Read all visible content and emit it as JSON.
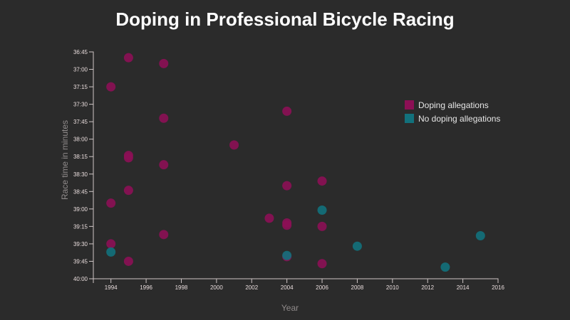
{
  "chart_data": {
    "type": "scatter",
    "title": "Doping in Professional Bicycle Racing",
    "xlabel": "Year",
    "ylabel": "Race time in minutes",
    "xlim": [
      1993,
      2016
    ],
    "ylim": [
      "36:45",
      "40:00"
    ],
    "y_inverted": true,
    "x_ticks": [
      "1994",
      "1996",
      "1998",
      "2000",
      "2002",
      "2004",
      "2006",
      "2008",
      "2010",
      "2012",
      "2014",
      "2016"
    ],
    "y_ticks": [
      "36:45",
      "37:00",
      "37:15",
      "37:30",
      "37:45",
      "38:00",
      "38:15",
      "38:30",
      "38:45",
      "39:00",
      "39:15",
      "39:30",
      "39:45",
      "40:00"
    ],
    "grid": false,
    "legend_position": "top-right",
    "series": [
      {
        "name": "Doping allegations",
        "color": "#8c0f55",
        "points": [
          {
            "x": 1995,
            "y": "36:50"
          },
          {
            "x": 1997,
            "y": "36:55"
          },
          {
            "x": 1994,
            "y": "37:15"
          },
          {
            "x": 2004,
            "y": "37:36"
          },
          {
            "x": 1997,
            "y": "37:42"
          },
          {
            "x": 2001,
            "y": "38:05"
          },
          {
            "x": 1995,
            "y": "38:14"
          },
          {
            "x": 1995,
            "y": "38:16"
          },
          {
            "x": 1997,
            "y": "38:22"
          },
          {
            "x": 2006,
            "y": "38:36"
          },
          {
            "x": 2004,
            "y": "38:40"
          },
          {
            "x": 1995,
            "y": "38:44"
          },
          {
            "x": 1994,
            "y": "38:55"
          },
          {
            "x": 2003,
            "y": "39:08"
          },
          {
            "x": 2004,
            "y": "39:12"
          },
          {
            "x": 2004,
            "y": "39:14"
          },
          {
            "x": 2006,
            "y": "39:15"
          },
          {
            "x": 1997,
            "y": "39:22"
          },
          {
            "x": 1994,
            "y": "39:30"
          },
          {
            "x": 2004,
            "y": "39:41"
          },
          {
            "x": 1995,
            "y": "39:45"
          },
          {
            "x": 2006,
            "y": "39:47"
          }
        ]
      },
      {
        "name": "No doping allegations",
        "color": "#12717c",
        "points": [
          {
            "x": 2006,
            "y": "39:01"
          },
          {
            "x": 2015,
            "y": "39:23"
          },
          {
            "x": 2008,
            "y": "39:32"
          },
          {
            "x": 1994,
            "y": "39:37"
          },
          {
            "x": 2004,
            "y": "39:40"
          },
          {
            "x": 2013,
            "y": "39:50"
          }
        ]
      }
    ]
  }
}
